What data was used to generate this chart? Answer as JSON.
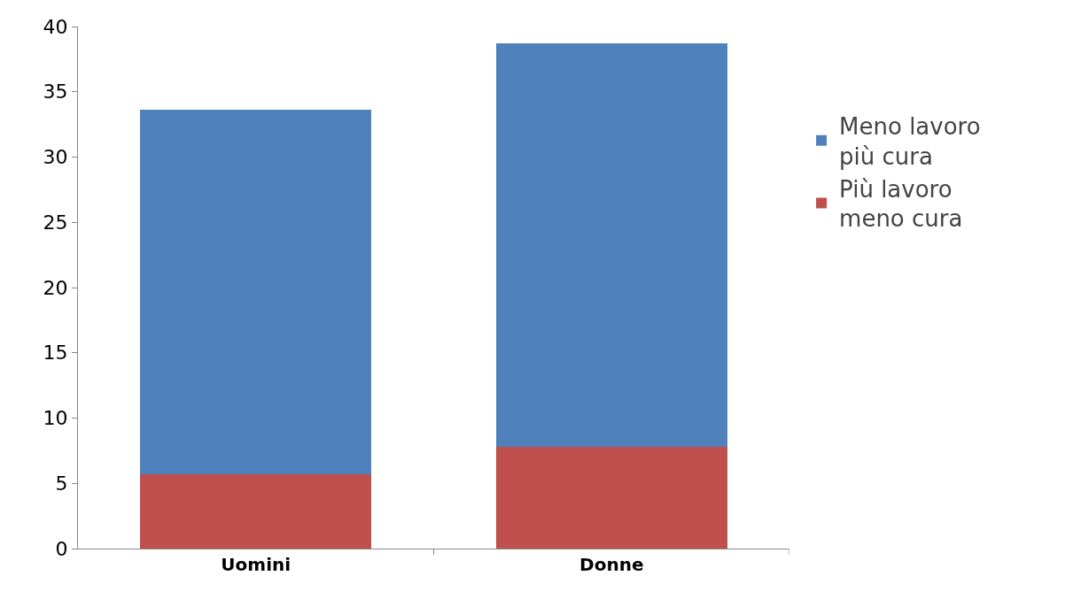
{
  "chart_data": {
    "type": "bar",
    "stacked": true,
    "categories": [
      "Uomini",
      "Donne"
    ],
    "series": [
      {
        "name": "Più lavoro meno cura",
        "color": "#c0504d",
        "values": [
          5.7,
          7.8
        ]
      },
      {
        "name": "Meno lavoro più cura",
        "color": "#4f81bd",
        "values": [
          27.9,
          30.9
        ]
      }
    ],
    "ylim": [
      0,
      40
    ],
    "yticks": [
      0,
      5,
      10,
      15,
      20,
      25,
      30,
      35,
      40
    ],
    "grid": false,
    "legend": "right"
  }
}
